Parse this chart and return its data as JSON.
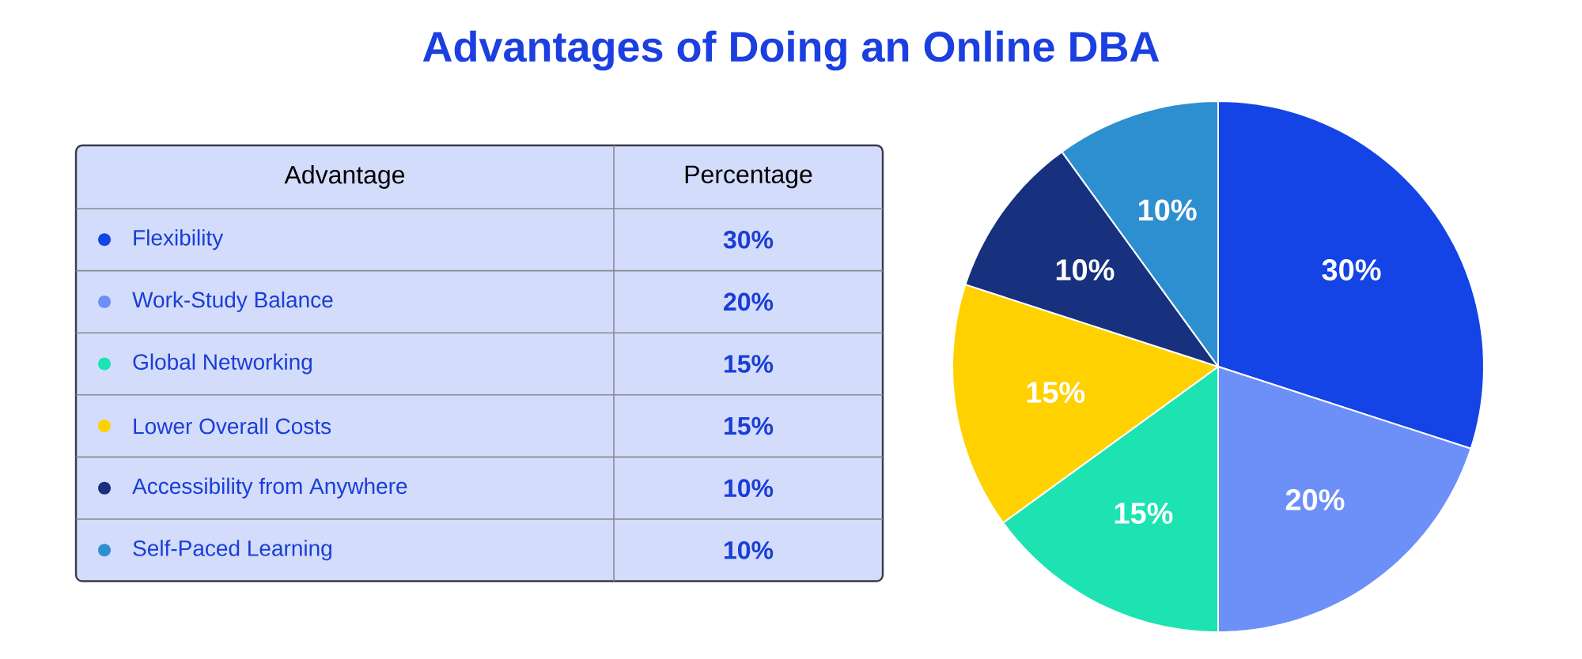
{
  "chart_data": {
    "type": "pie",
    "title": "Advantages of Doing an Online DBA",
    "categories": [
      "Flexibility",
      "Work-Study Balance",
      "Global Networking",
      "Lower Overall Costs",
      "Accessibility from Anywhere",
      "Self-Paced Learning"
    ],
    "values": [
      30,
      20,
      15,
      15,
      10,
      10
    ],
    "value_labels": [
      "30%",
      "20%",
      "15%",
      "15%",
      "10%",
      "10%"
    ],
    "colors": [
      "#1444e6",
      "#6d8ff8",
      "#1ce3b1",
      "#ffd100",
      "#17317f",
      "#2e8fd0"
    ],
    "annotations": [
      "Advantage",
      "Percentage"
    ],
    "legend": "left"
  }
}
